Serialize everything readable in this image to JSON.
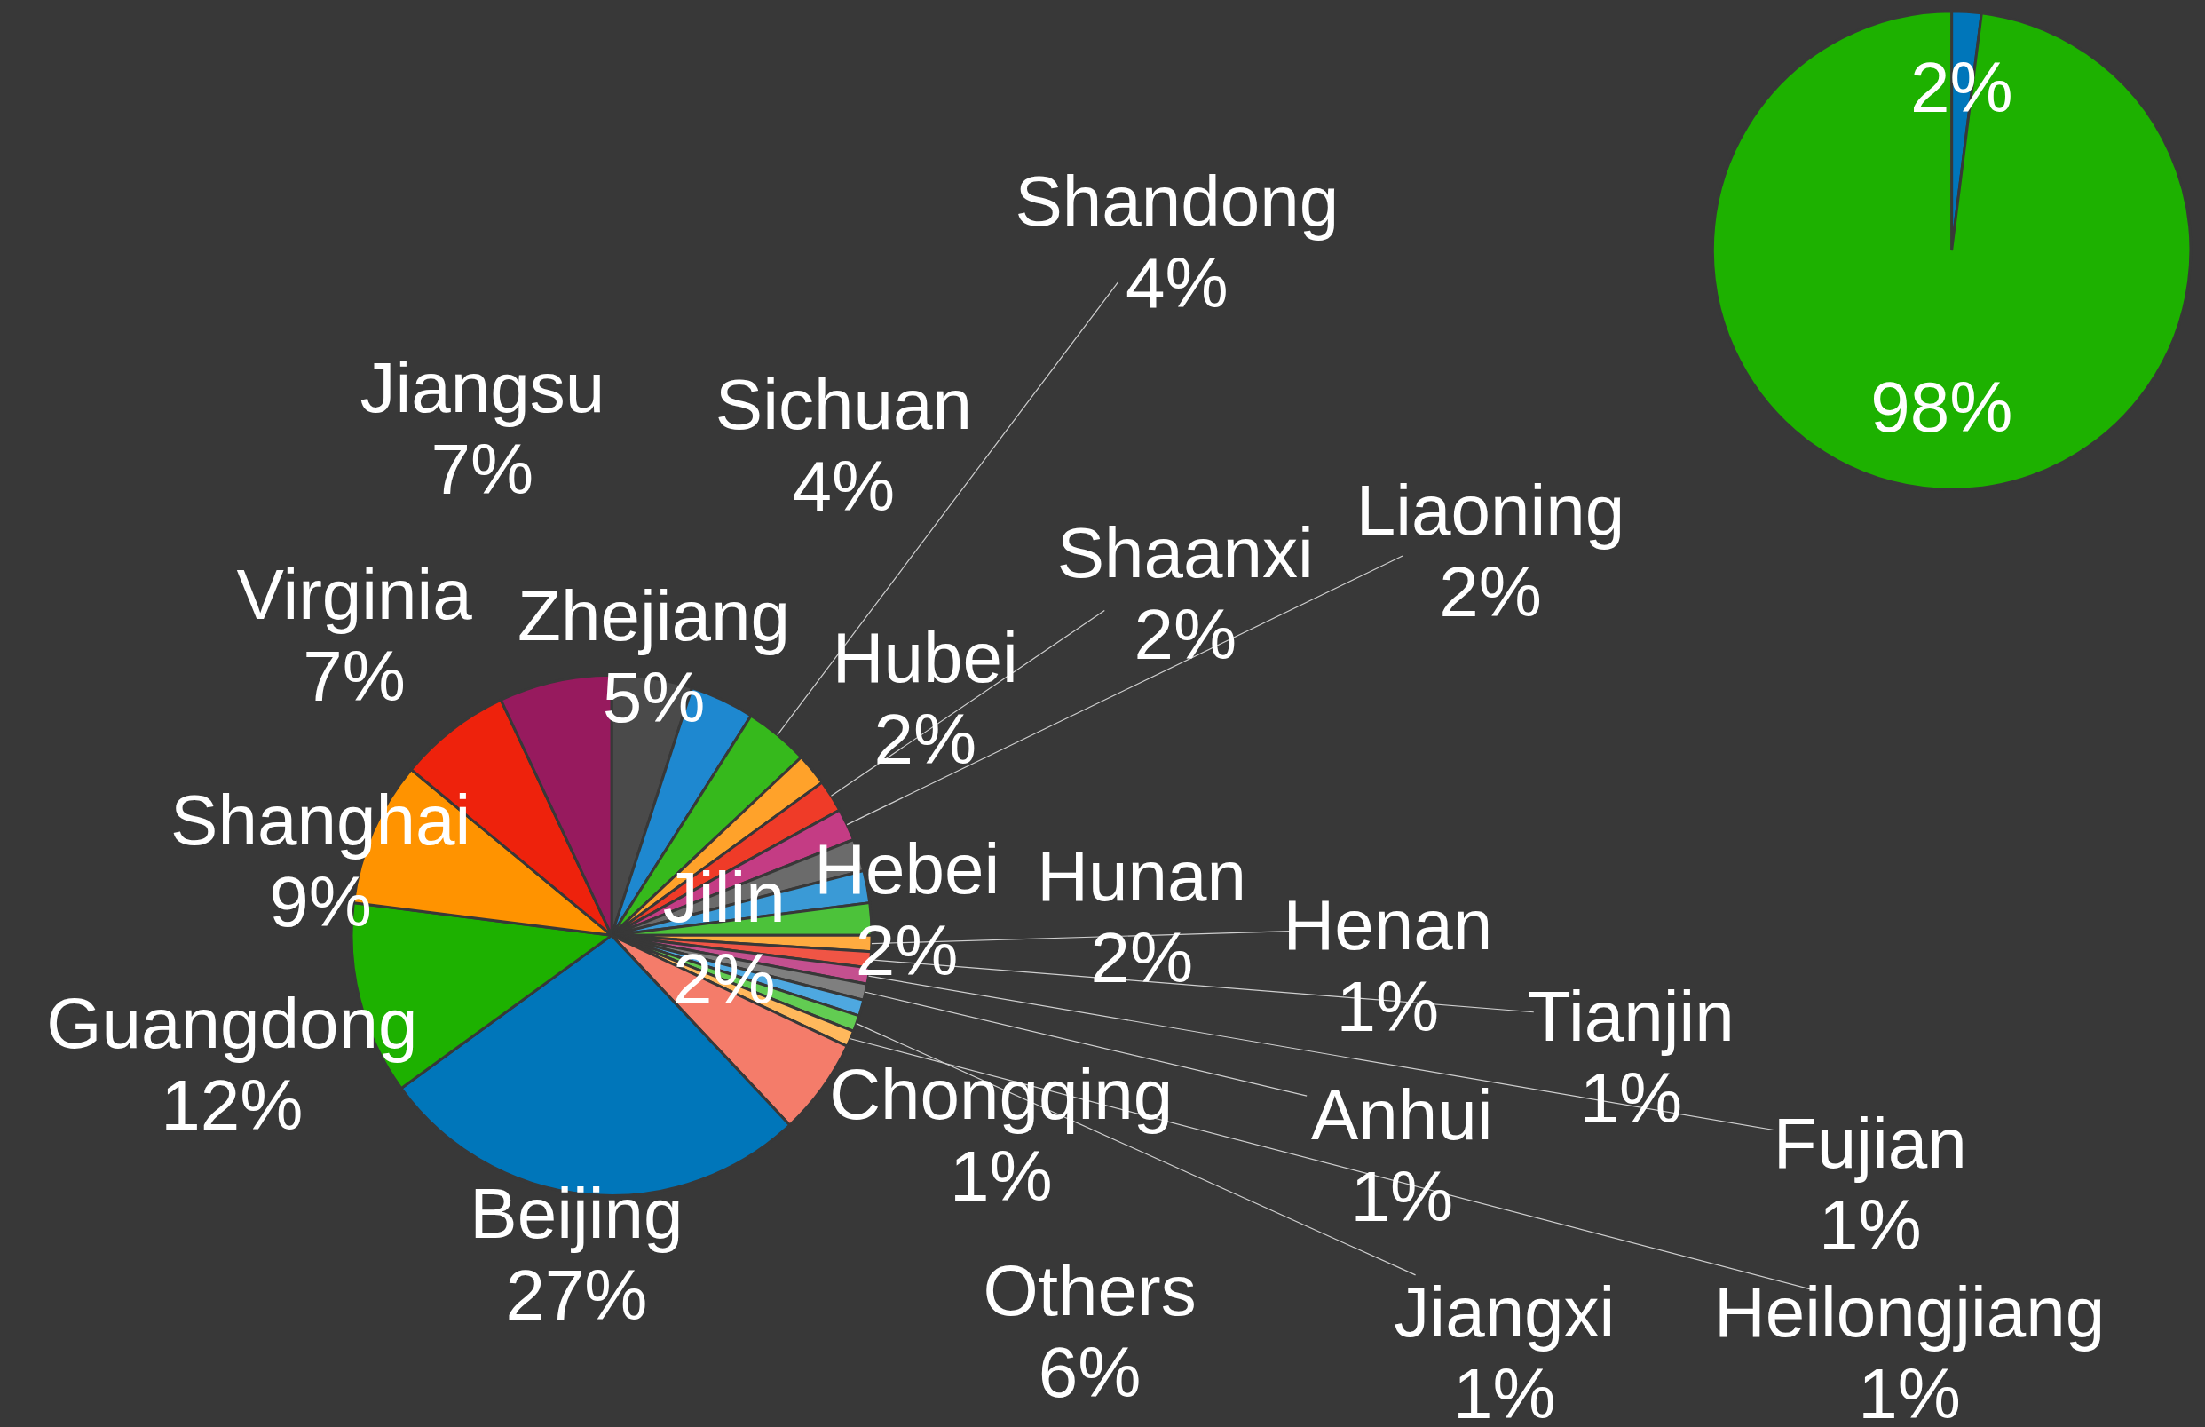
{
  "chart_data": [
    {
      "type": "pie",
      "categories": [
        "Zhejiang",
        "Sichuan",
        "Shandong",
        "Hubei",
        "Shaanxi",
        "Liaoning",
        "Jilin",
        "Hebei",
        "Hunan",
        "Henan",
        "Tianjin",
        "Fujian",
        "Anhui",
        "Chongqing",
        "Jiangxi",
        "Heilongjiang",
        "Others",
        "Beijing",
        "Guangdong",
        "Shanghai",
        "Virginia",
        "Jiangsu"
      ],
      "values": [
        5,
        4,
        4,
        2,
        2,
        2,
        2,
        2,
        2,
        1,
        1,
        1,
        1,
        1,
        1,
        1,
        6,
        27,
        12,
        9,
        7,
        7
      ],
      "value_labels": [
        "5%",
        "4%",
        "4%",
        "2%",
        "2%",
        "2%",
        "2%",
        "2%",
        "2%",
        "1%",
        "1%",
        "1%",
        "1%",
        "1%",
        "1%",
        "1%",
        "6%",
        "27%",
        "12%",
        "9%",
        "7%",
        "7%"
      ],
      "colors": [
        "#4a4a4a",
        "#1e88d0",
        "#36b91c",
        "#ffa22a",
        "#ef3b28",
        "#c43c84",
        "#6b6b6b",
        "#3a9ad6",
        "#4cc23a",
        "#ffab40",
        "#f05545",
        "#c4508f",
        "#7f7f7f",
        "#4ea8e0",
        "#62cc52",
        "#ffb85c",
        "#f47c6a",
        "#0076ba",
        "#1db100",
        "#ff9300",
        "#ee220c",
        "#971a5e"
      ]
    },
    {
      "type": "pie",
      "categories": [
        null,
        null
      ],
      "values": [
        2,
        98
      ],
      "value_labels": [
        "2%",
        "98%"
      ],
      "colors": [
        "#0076ba",
        "#1db100"
      ]
    }
  ]
}
